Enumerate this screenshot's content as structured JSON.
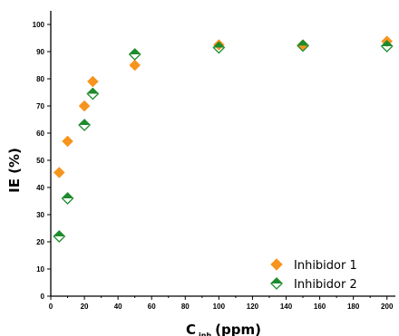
{
  "chart_data": {
    "type": "scatter",
    "xlabel": "C",
    "xlabel_sub": "inh",
    "xlabel_unit": "(ppm)",
    "ylabel": "IE (%)",
    "xlim": [
      0,
      205
    ],
    "ylim": [
      0,
      105
    ],
    "xticks": [
      0,
      20,
      40,
      60,
      80,
      100,
      120,
      140,
      160,
      180,
      200
    ],
    "yticks": [
      0,
      10,
      20,
      30,
      40,
      50,
      60,
      70,
      80,
      90,
      100
    ],
    "grid": false,
    "legend_position": "bottom-right",
    "series": [
      {
        "name": "Inhibidor 1",
        "marker": "filled-diamond",
        "color": "#f7941d",
        "points": [
          [
            5,
            45.5
          ],
          [
            10,
            57
          ],
          [
            20,
            70
          ],
          [
            25,
            79
          ],
          [
            50,
            85
          ],
          [
            100,
            92.5
          ],
          [
            150,
            92.5
          ],
          [
            200,
            93.8
          ]
        ]
      },
      {
        "name": "Inhibidor 2",
        "marker": "half-filled-diamond",
        "color": "#1e8b2e",
        "points": [
          [
            5,
            22
          ],
          [
            10,
            36
          ],
          [
            20,
            63
          ],
          [
            25,
            74.5
          ],
          [
            50,
            89
          ],
          [
            100,
            91.5
          ],
          [
            150,
            92.2
          ],
          [
            200,
            92
          ]
        ]
      }
    ]
  }
}
